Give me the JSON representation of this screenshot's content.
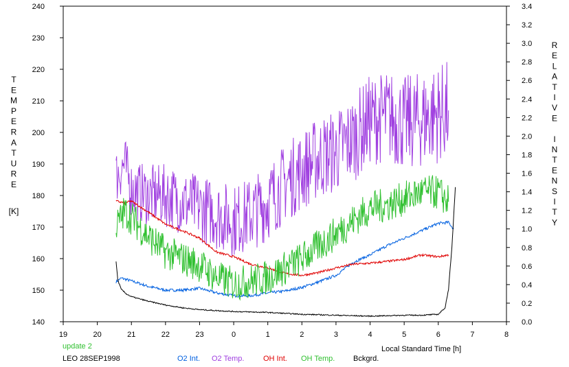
{
  "chart_data": {
    "type": "line",
    "yleft_label": "TEMPERATURE",
    "yleft_unit": "[K]",
    "yright_label": "RELATIVE INTENSITY",
    "xlabel": "Local Standard Time [h]",
    "station": "LEO 28SEP1998",
    "update_note": "update 2",
    "x_ticks": [
      "19",
      "20",
      "21",
      "22",
      "23",
      "0",
      "1",
      "2",
      "3",
      "4",
      "5",
      "6",
      "7",
      "8"
    ],
    "yleft_ticks": [
      "140",
      "150",
      "160",
      "170",
      "180",
      "190",
      "200",
      "210",
      "220",
      "230",
      "240"
    ],
    "yright_ticks": [
      "0.0",
      "0.2",
      "0.4",
      "0.6",
      "0.8",
      "1.0",
      "1.2",
      "1.4",
      "1.6",
      "1.8",
      "2.0",
      "2.2",
      "2.4",
      "2.6",
      "2.8",
      "3.0",
      "3.2",
      "3.4"
    ],
    "xlim": [
      19,
      32
    ],
    "yleft_lim": [
      140,
      240
    ],
    "yright_lim": [
      0,
      3.4
    ],
    "series": [
      {
        "name": "O2 Int.",
        "color": "#0060e0",
        "axis": "right",
        "x": [
          20.55,
          20.7,
          21.0,
          21.5,
          22.0,
          22.5,
          23.0,
          23.5,
          24.0,
          24.5,
          25.0,
          25.5,
          26.0,
          26.5,
          27.0,
          27.5,
          28.0,
          28.5,
          29.0,
          29.5,
          30.0,
          30.3,
          30.45
        ],
        "y": [
          0.43,
          0.47,
          0.44,
          0.38,
          0.34,
          0.34,
          0.36,
          0.31,
          0.28,
          0.28,
          0.31,
          0.33,
          0.37,
          0.43,
          0.5,
          0.64,
          0.72,
          0.82,
          0.9,
          0.98,
          1.06,
          1.07,
          1.0
        ]
      },
      {
        "name": "O2 Temp.",
        "color": "#a040e0",
        "axis": "left",
        "x": [
          20.55,
          20.8,
          21.0,
          21.5,
          22.0,
          22.5,
          23.0,
          23.5,
          24.0,
          24.5,
          25.0,
          25.5,
          26.0,
          26.5,
          27.0,
          27.5,
          28.0,
          28.5,
          29.0,
          29.5,
          30.0,
          30.3
        ],
        "y": [
          186,
          190,
          182,
          180,
          180,
          178,
          176,
          174,
          172,
          174,
          178,
          184,
          188,
          192,
          194,
          198,
          204,
          205,
          203,
          204,
          206,
          207
        ]
      },
      {
        "name": "OH Int.",
        "color": "#e00000",
        "axis": "right",
        "x": [
          20.55,
          20.8,
          21.0,
          21.5,
          22.0,
          22.5,
          23.0,
          23.5,
          24.0,
          24.5,
          25.0,
          25.5,
          26.0,
          26.5,
          27.0,
          27.5,
          28.0,
          28.5,
          29.0,
          29.5,
          30.0,
          30.3
        ],
        "y": [
          1.3,
          1.28,
          1.3,
          1.18,
          1.05,
          0.98,
          0.9,
          0.75,
          0.7,
          0.62,
          0.58,
          0.52,
          0.5,
          0.53,
          0.58,
          0.62,
          0.63,
          0.65,
          0.67,
          0.72,
          0.7,
          0.72
        ]
      },
      {
        "name": "OH Temp.",
        "color": "#30c030",
        "axis": "left",
        "x": [
          20.55,
          20.8,
          21.0,
          21.5,
          22.0,
          22.5,
          23.0,
          23.5,
          24.0,
          24.5,
          25.0,
          25.5,
          26.0,
          26.5,
          27.0,
          27.5,
          28.0,
          28.5,
          29.0,
          29.5,
          30.0,
          30.3
        ],
        "y": [
          170,
          175,
          173,
          167,
          162,
          160,
          158,
          154,
          152,
          153,
          154,
          157,
          160,
          164,
          168,
          172,
          176,
          177,
          179,
          181,
          181,
          178
        ]
      },
      {
        "name": "Bckgrd.",
        "color": "#000000",
        "axis": "right",
        "x": [
          20.55,
          20.6,
          20.7,
          20.85,
          21.0,
          21.5,
          22.0,
          22.5,
          23.0,
          23.5,
          24.0,
          25.0,
          26.0,
          27.0,
          28.0,
          29.0,
          29.5,
          30.0,
          30.2,
          30.3,
          30.4,
          30.5
        ],
        "y": [
          0.65,
          0.45,
          0.35,
          0.3,
          0.27,
          0.22,
          0.18,
          0.15,
          0.13,
          0.12,
          0.11,
          0.1,
          0.08,
          0.07,
          0.06,
          0.07,
          0.07,
          0.08,
          0.15,
          0.35,
          0.8,
          1.45
        ]
      }
    ]
  }
}
